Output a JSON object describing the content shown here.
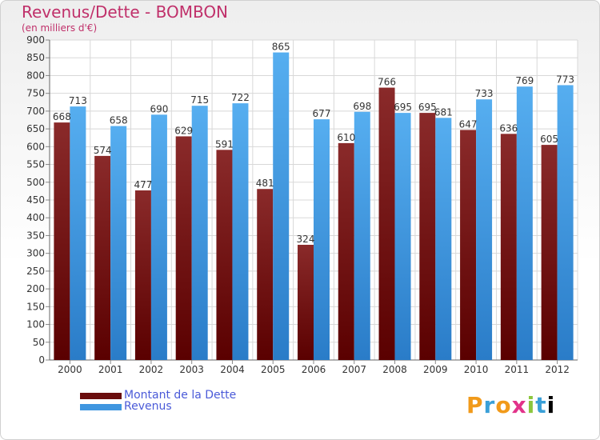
{
  "chart_data": {
    "type": "bar",
    "title": "Revenus/Dette - BOMBON",
    "subtitle": "(en milliers d'€)",
    "categories": [
      "2000",
      "2001",
      "2002",
      "2003",
      "2004",
      "2005",
      "2006",
      "2007",
      "2008",
      "2009",
      "2010",
      "2011",
      "2012"
    ],
    "series": [
      {
        "name": "Montant de la Dette",
        "color": "#7a1a1a",
        "values": [
          668,
          574,
          477,
          629,
          591,
          481,
          324,
          610,
          766,
          695,
          647,
          636,
          605
        ]
      },
      {
        "name": "Revenus",
        "color": "#3f96e0",
        "values": [
          713,
          658,
          690,
          715,
          722,
          865,
          677,
          698,
          695,
          681,
          733,
          769,
          773
        ]
      }
    ],
    "ylim": [
      0,
      900
    ],
    "yticks": [
      0,
      50,
      100,
      150,
      200,
      250,
      300,
      350,
      400,
      450,
      500,
      550,
      600,
      650,
      700,
      750,
      800,
      850,
      900
    ],
    "grid": true,
    "legend_position": "bottom-left"
  },
  "logo": {
    "letters": [
      "P",
      "r",
      "o",
      "x",
      "i",
      "t",
      "i"
    ],
    "text": "Proxiti"
  }
}
